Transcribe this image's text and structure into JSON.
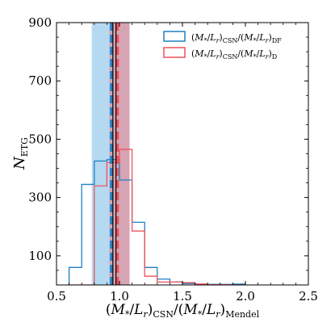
{
  "chart_data": {
    "type": "histogram",
    "xlabel": "(M*/Lr)CSN/(M*/Lr)Mendel",
    "ylabel": "NETG",
    "xlim": [
      0.5,
      2.5
    ],
    "ylim": [
      0,
      900
    ],
    "xticks": [
      0.5,
      1.0,
      1.5,
      2.0,
      2.5
    ],
    "xtick_labels": [
      "0.5",
      "1.0",
      "1.5",
      "2.0",
      "2.5"
    ],
    "yticks": [
      100,
      300,
      500,
      700,
      900
    ],
    "ytick_labels": [
      "100",
      "300",
      "500",
      "700",
      "900"
    ],
    "bin_edges": [
      0.6,
      0.7,
      0.8,
      0.9,
      1.0,
      1.1,
      1.2,
      1.3,
      1.4,
      1.5,
      1.6,
      1.7,
      1.8,
      1.9,
      2.0
    ],
    "series": [
      {
        "name": "(M*/Lr)CSN/(M*/Lr)DF",
        "color": "#1f7fc4",
        "counts": [
          60,
          345,
          425,
          430,
          360,
          215,
          60,
          20,
          10,
          5,
          3,
          2,
          2,
          3
        ],
        "median": 0.935,
        "band": [
          0.78,
          1.08
        ],
        "band_color": "#8ec5ea"
      },
      {
        "name": "(M*/Lr)CSN/(M*/Lr)D",
        "color": "#f0505a",
        "counts": [
          0,
          0,
          340,
          420,
          465,
          185,
          30,
          10,
          10,
          8,
          3,
          1,
          1,
          0
        ],
        "median": 0.985,
        "band": [
          0.92,
          1.08
        ],
        "band_color": "#f07880"
      }
    ],
    "legend_position": "upper-right",
    "grid": false
  }
}
